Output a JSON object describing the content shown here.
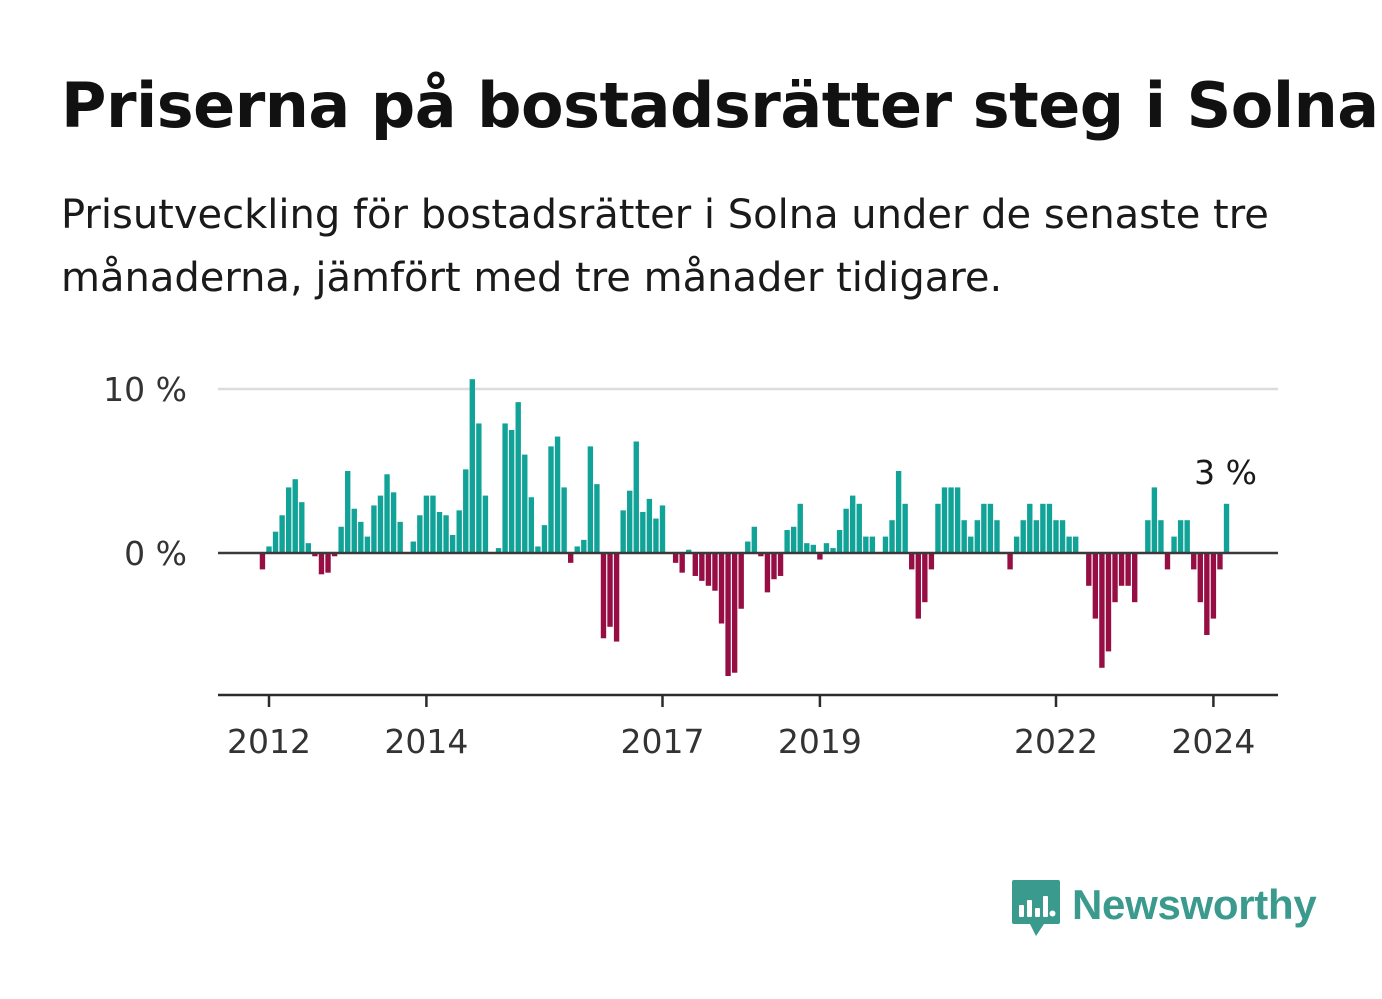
{
  "title": "Priserna på bostadsrätter steg i Solna",
  "subtitle": "Prisutveckling för bostadsrätter i Solna under de senaste tre månaderna, jämfört med tre månader tidigare.",
  "brand": {
    "name": "Newsworthy",
    "icon": "bar-chart-speech-bubble-icon",
    "color": "#3a9a8e"
  },
  "chart_data": {
    "type": "bar",
    "title": "",
    "xlabel": "",
    "ylabel": "",
    "ylim": [
      -8.6,
      10.6
    ],
    "y_ticks": [
      {
        "value": 0,
        "label": "0 %"
      },
      {
        "value": 10,
        "label": "10 %"
      }
    ],
    "x_ticks": [
      {
        "value": 2012,
        "label": "2012"
      },
      {
        "value": 2014,
        "label": "2014"
      },
      {
        "value": 2017,
        "label": "2017"
      },
      {
        "value": 2019,
        "label": "2019"
      },
      {
        "value": 2022,
        "label": "2022"
      },
      {
        "value": 2024,
        "label": "2024"
      }
    ],
    "grid": "horizontal",
    "colors": {
      "positive": "#12a398",
      "negative": "#970e45"
    },
    "annotation": {
      "label": "3 %",
      "x": "2024-03"
    },
    "x": [
      "2011-12",
      "2012-01",
      "2012-02",
      "2012-03",
      "2012-04",
      "2012-05",
      "2012-06",
      "2012-07",
      "2012-08",
      "2012-09",
      "2012-10",
      "2012-11",
      "2012-12",
      "2013-01",
      "2013-02",
      "2013-03",
      "2013-04",
      "2013-05",
      "2013-06",
      "2013-07",
      "2013-08",
      "2013-09",
      "2013-10",
      "2013-11",
      "2013-12",
      "2014-01",
      "2014-02",
      "2014-03",
      "2014-04",
      "2014-05",
      "2014-06",
      "2014-07",
      "2014-08",
      "2014-09",
      "2014-10",
      "2014-11",
      "2014-12",
      "2015-01",
      "2015-02",
      "2015-03",
      "2015-04",
      "2015-05",
      "2015-06",
      "2015-07",
      "2015-08",
      "2015-09",
      "2015-10",
      "2015-11",
      "2015-12",
      "2016-01",
      "2016-02",
      "2016-03",
      "2016-04",
      "2016-05",
      "2016-06",
      "2016-07",
      "2016-08",
      "2016-09",
      "2016-10",
      "2016-11",
      "2016-12",
      "2017-01",
      "2017-02",
      "2017-03",
      "2017-04",
      "2017-05",
      "2017-06",
      "2017-07",
      "2017-08",
      "2017-09",
      "2017-10",
      "2017-11",
      "2017-12",
      "2018-01",
      "2018-02",
      "2018-03",
      "2018-04",
      "2018-05",
      "2018-06",
      "2018-07",
      "2018-08",
      "2018-09",
      "2018-10",
      "2018-11",
      "2018-12",
      "2019-01",
      "2019-02",
      "2019-03",
      "2019-04",
      "2019-05",
      "2019-06",
      "2019-07",
      "2019-08",
      "2019-09",
      "2019-10",
      "2019-11",
      "2019-12",
      "2020-01",
      "2020-02",
      "2020-03",
      "2020-04",
      "2020-05",
      "2020-06",
      "2020-07",
      "2020-08",
      "2020-09",
      "2020-10",
      "2020-11",
      "2020-12",
      "2021-01",
      "2021-02",
      "2021-03",
      "2021-04",
      "2021-05",
      "2021-06",
      "2021-07",
      "2021-08",
      "2021-09",
      "2021-10",
      "2021-11",
      "2021-12",
      "2022-01",
      "2022-02",
      "2022-03",
      "2022-04",
      "2022-05",
      "2022-06",
      "2022-07",
      "2022-08",
      "2022-09",
      "2022-10",
      "2022-11",
      "2022-12",
      "2023-01",
      "2023-02",
      "2023-03",
      "2023-04",
      "2023-05",
      "2023-06",
      "2023-07",
      "2023-08",
      "2023-09",
      "2023-10",
      "2023-11",
      "2023-12",
      "2024-01",
      "2024-02",
      "2024-03"
    ],
    "values": [
      -1.0,
      0.4,
      1.3,
      2.3,
      4.0,
      4.5,
      3.1,
      0.6,
      -0.2,
      -1.3,
      -1.2,
      -0.2,
      1.6,
      5.0,
      2.7,
      1.9,
      1.0,
      2.9,
      3.5,
      4.8,
      3.7,
      1.9,
      0,
      0.7,
      2.3,
      3.5,
      3.5,
      2.5,
      2.3,
      1.1,
      2.6,
      5.1,
      10.6,
      7.9,
      3.5,
      0,
      0.3,
      7.9,
      7.5,
      9.2,
      6.0,
      3.4,
      0.4,
      1.7,
      6.5,
      7.1,
      4.0,
      -0.6,
      0.4,
      0.8,
      6.5,
      4.2,
      -5.2,
      -4.5,
      -5.4,
      2.6,
      3.8,
      6.8,
      2.5,
      3.3,
      2.1,
      2.9,
      0,
      -0.6,
      -1.2,
      0.2,
      -1.4,
      -1.7,
      -2.0,
      -2.3,
      -4.3,
      -7.5,
      -7.3,
      -3.4,
      0.7,
      1.6,
      -0.2,
      -2.4,
      -1.6,
      -1.4,
      1.4,
      1.6,
      3.0,
      0.6,
      0.5,
      -0.4,
      0.6,
      0.3,
      1.4,
      2.7,
      3.5,
      3.0,
      1.0,
      1.0,
      0,
      1.0,
      2.0,
      5.0,
      3.0,
      -1.0,
      -4.0,
      -3.0,
      -1.0,
      3.0,
      4.0,
      4.0,
      4.0,
      2.0,
      1.0,
      2.0,
      3.0,
      3.0,
      2.0,
      0,
      -1.0,
      1.0,
      2.0,
      3.0,
      2.0,
      3.0,
      3.0,
      2.0,
      2.0,
      1.0,
      1.0,
      0,
      -2.0,
      -4.0,
      -7.0,
      -6.0,
      -3.0,
      -2.0,
      -2.0,
      -3.0,
      0,
      2.0,
      4.0,
      2.0,
      -1.0,
      1.0,
      2.0,
      2.0,
      -1.0,
      -3.0,
      -5.0,
      -4.0,
      -1.0,
      3.0
    ]
  }
}
